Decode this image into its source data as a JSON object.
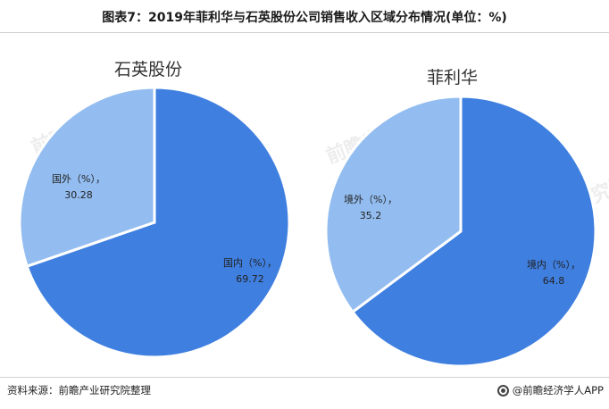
{
  "header": {
    "title": "图表7：2019年菲利华与石英股份公司销售收入区域分布情况(单位：%)"
  },
  "chart_data": [
    {
      "type": "pie",
      "title": "石英股份",
      "slices": [
        {
          "label": "国内（%），",
          "value": 69.72,
          "value_text": "69.72",
          "color": "#3f7fe0"
        },
        {
          "label": "国外（%），",
          "value": 30.28,
          "value_text": "30.28",
          "color": "#93bdf0"
        }
      ]
    },
    {
      "type": "pie",
      "title": "菲利华",
      "slices": [
        {
          "label": "境内（%），",
          "value": 64.8,
          "value_text": "64.8",
          "color": "#3f7fe0"
        },
        {
          "label": "境外（%），",
          "value": 35.2,
          "value_text": "35.2",
          "color": "#93bdf0"
        }
      ]
    }
  ],
  "watermark": {
    "text": "前瞻产业研究院"
  },
  "footer": {
    "source": "资料来源：前瞻产业研究院整理",
    "brand": "@前瞻经济学人APP"
  }
}
